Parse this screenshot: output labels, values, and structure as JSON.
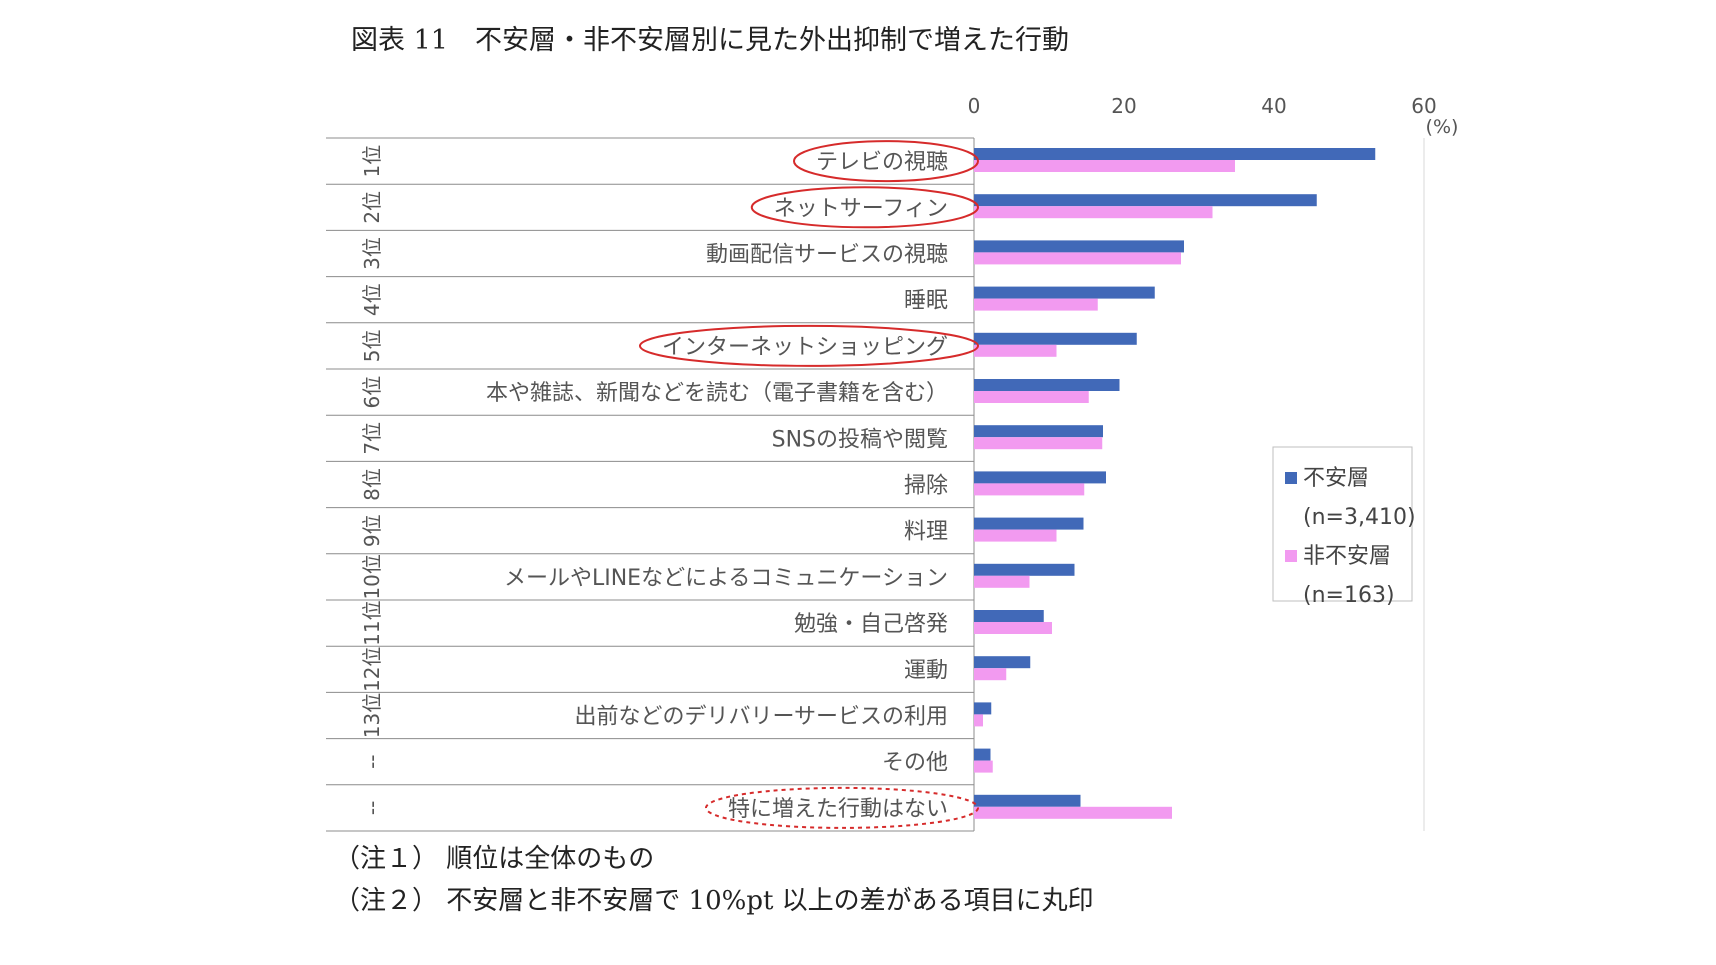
{
  "chart_data": {
    "type": "bar",
    "orientation": "horizontal",
    "title": "図表 11　不安層・非不安層別に見た外出抑制で増えた行動",
    "unit_label": "(%)",
    "xlim": [
      0,
      60
    ],
    "xticks": [
      "0",
      "20",
      "40",
      "60"
    ],
    "grid": false,
    "legend_position": "right",
    "ranks": [
      "1位",
      "2位",
      "3位",
      "4位",
      "5位",
      "6位",
      "7位",
      "8位",
      "9位",
      "10位",
      "11位",
      "12位",
      "13位",
      "--",
      "--"
    ],
    "categories": [
      "テレビの視聴",
      "ネットサーフィン",
      "動画配信サービスの視聴",
      "睡眠",
      "インターネットショッピング",
      "本や雑誌、新聞などを読む（電子書籍を含む）",
      "SNSの投稿や閲覧",
      "掃除",
      "料理",
      "メールやLINEなどによるコミュニケーション",
      "勉強・自己啓発",
      "運動",
      "出前などのデリバリーサービスの利用",
      "その他",
      "特に増えた行動はない"
    ],
    "circled": [
      "solid",
      "solid",
      "none",
      "none",
      "solid",
      "none",
      "none",
      "none",
      "none",
      "none",
      "none",
      "none",
      "none",
      "none",
      "dashed"
    ],
    "series": [
      {
        "name": "不安層",
        "n_label": "(n=3,410)",
        "color": "#4169b8",
        "values": [
          53.5,
          45.7,
          28.0,
          24.1,
          21.7,
          19.4,
          17.2,
          17.6,
          14.6,
          13.4,
          9.3,
          7.5,
          2.3,
          2.2,
          14.2
        ]
      },
      {
        "name": "非不安層",
        "n_label": "(n=163)",
        "color": "#f29af0",
        "values": [
          34.8,
          31.8,
          27.6,
          16.5,
          11.0,
          15.3,
          17.1,
          14.7,
          11.0,
          7.4,
          10.4,
          4.3,
          1.2,
          2.5,
          26.4
        ]
      }
    ]
  },
  "notes": [
    "（注１） 順位は全体のもの",
    "（注２） 不安層と非不安層で 10%pt 以上の差がある項目に丸印"
  ]
}
